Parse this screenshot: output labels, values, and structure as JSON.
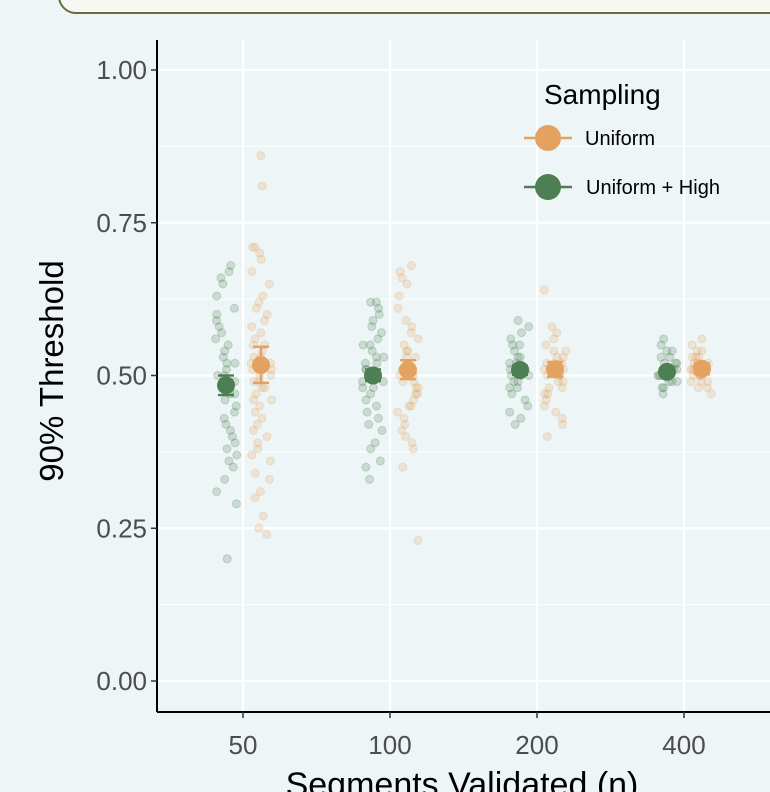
{
  "chart_data": {
    "type": "scatter",
    "title": "",
    "xlabel": "Segments Validated (n)",
    "ylabel": "90% Threshold",
    "categories": [
      "50",
      "100",
      "200",
      "400"
    ],
    "ylim": [
      0,
      1
    ],
    "yticks": [
      "0.00",
      "0.25",
      "0.50",
      "0.75",
      "1.00"
    ],
    "grid": true,
    "legend": {
      "title": "Sampling",
      "position": "top-right"
    },
    "series": [
      {
        "name": "Uniform",
        "color": "#e3a25f",
        "means": [
          0.517,
          0.509,
          0.51,
          0.511
        ],
        "err_low": [
          0.488,
          0.494,
          0.498,
          0.502
        ],
        "err_high": [
          0.547,
          0.525,
          0.522,
          0.52
        ],
        "points": [
          [
            0.86,
            0.81,
            0.71,
            0.71,
            0.7,
            0.69,
            0.67,
            0.65,
            0.63,
            0.62,
            0.61,
            0.6,
            0.59,
            0.58,
            0.57,
            0.56,
            0.55,
            0.55,
            0.54,
            0.53,
            0.53,
            0.52,
            0.52,
            0.51,
            0.51,
            0.5,
            0.5,
            0.49,
            0.49,
            0.48,
            0.48,
            0.47,
            0.46,
            0.46,
            0.45,
            0.44,
            0.43,
            0.42,
            0.41,
            0.4,
            0.39,
            0.38,
            0.37,
            0.36,
            0.34,
            0.33,
            0.31,
            0.3,
            0.27,
            0.25,
            0.24
          ],
          [
            0.68,
            0.67,
            0.66,
            0.65,
            0.63,
            0.61,
            0.59,
            0.58,
            0.57,
            0.56,
            0.55,
            0.54,
            0.54,
            0.53,
            0.53,
            0.52,
            0.52,
            0.51,
            0.51,
            0.5,
            0.5,
            0.49,
            0.49,
            0.48,
            0.48,
            0.47,
            0.47,
            0.46,
            0.45,
            0.45,
            0.44,
            0.43,
            0.42,
            0.41,
            0.4,
            0.39,
            0.38,
            0.35,
            0.23
          ],
          [
            0.64,
            0.58,
            0.57,
            0.56,
            0.55,
            0.54,
            0.54,
            0.53,
            0.53,
            0.52,
            0.52,
            0.52,
            0.51,
            0.51,
            0.51,
            0.5,
            0.5,
            0.5,
            0.49,
            0.49,
            0.48,
            0.48,
            0.47,
            0.47,
            0.46,
            0.45,
            0.44,
            0.43,
            0.42,
            0.4
          ],
          [
            0.56,
            0.55,
            0.54,
            0.54,
            0.53,
            0.53,
            0.53,
            0.52,
            0.52,
            0.52,
            0.51,
            0.51,
            0.51,
            0.51,
            0.5,
            0.5,
            0.5,
            0.5,
            0.49,
            0.49,
            0.49,
            0.48,
            0.48,
            0.47
          ]
        ]
      },
      {
        "name": "Uniform + High",
        "color": "#4e7f52",
        "means": [
          0.484,
          0.5,
          0.509,
          0.506
        ],
        "err_low": [
          0.468,
          0.491,
          0.501,
          0.5
        ],
        "err_high": [
          0.5,
          0.51,
          0.516,
          0.512
        ],
        "points": [
          [
            0.68,
            0.67,
            0.66,
            0.65,
            0.63,
            0.61,
            0.6,
            0.59,
            0.58,
            0.57,
            0.56,
            0.55,
            0.54,
            0.53,
            0.52,
            0.52,
            0.51,
            0.5,
            0.5,
            0.49,
            0.49,
            0.48,
            0.47,
            0.47,
            0.46,
            0.45,
            0.44,
            0.43,
            0.42,
            0.41,
            0.4,
            0.39,
            0.38,
            0.37,
            0.36,
            0.35,
            0.33,
            0.31,
            0.29,
            0.2
          ],
          [
            0.62,
            0.62,
            0.61,
            0.6,
            0.59,
            0.58,
            0.57,
            0.56,
            0.55,
            0.55,
            0.54,
            0.53,
            0.53,
            0.52,
            0.52,
            0.51,
            0.51,
            0.5,
            0.5,
            0.49,
            0.49,
            0.48,
            0.48,
            0.47,
            0.46,
            0.45,
            0.44,
            0.43,
            0.42,
            0.41,
            0.39,
            0.38,
            0.36,
            0.35,
            0.33
          ],
          [
            0.59,
            0.58,
            0.57,
            0.56,
            0.55,
            0.55,
            0.54,
            0.53,
            0.53,
            0.52,
            0.52,
            0.51,
            0.51,
            0.51,
            0.5,
            0.5,
            0.5,
            0.49,
            0.49,
            0.48,
            0.48,
            0.47,
            0.46,
            0.45,
            0.44,
            0.43,
            0.42
          ],
          [
            0.56,
            0.55,
            0.54,
            0.54,
            0.53,
            0.53,
            0.52,
            0.52,
            0.52,
            0.51,
            0.51,
            0.51,
            0.5,
            0.5,
            0.5,
            0.49,
            0.49,
            0.49,
            0.48,
            0.48,
            0.47
          ]
        ]
      }
    ]
  }
}
